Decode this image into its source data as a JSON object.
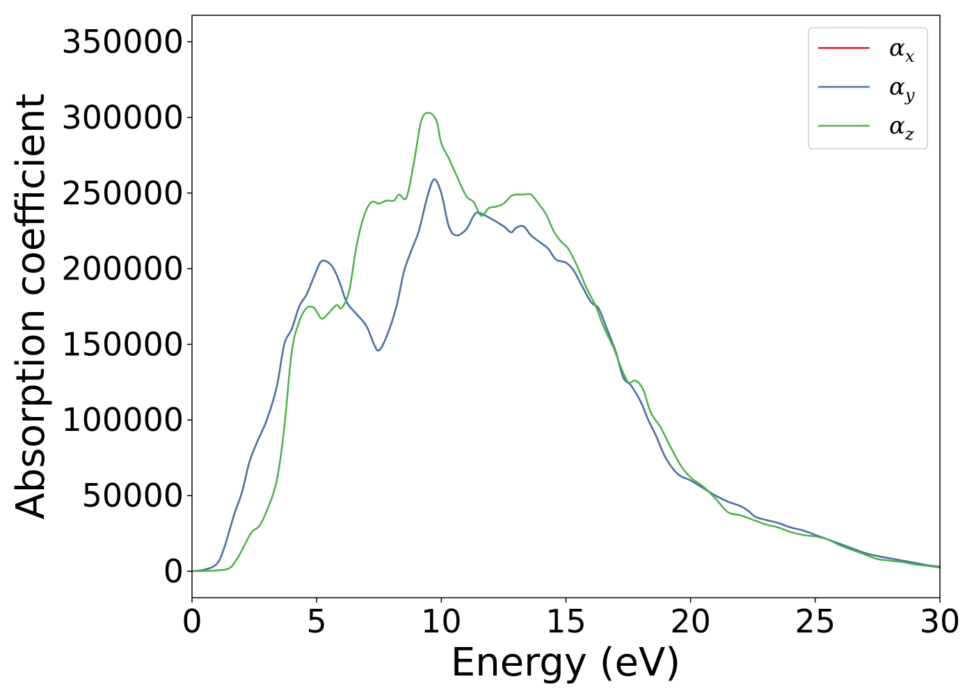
{
  "chart_data": {
    "type": "line",
    "title": "",
    "xlabel": "Energy (eV)",
    "ylabel": "Absorption coefficient",
    "xlim": [
      0,
      30
    ],
    "ylim": [
      -17500,
      367500
    ],
    "xticks": [
      0,
      5,
      10,
      15,
      20,
      25,
      30
    ],
    "yticks": [
      0,
      50000,
      100000,
      150000,
      200000,
      250000,
      300000,
      350000
    ],
    "grid": false,
    "legend_position": "top-right",
    "series": [
      {
        "name": "α_x",
        "legend_base": "α",
        "legend_sub": "x",
        "color": "#e41a1c",
        "x": [
          0,
          0.5,
          1.0,
          1.3,
          1.7,
          2.0,
          2.3,
          2.6,
          3.0,
          3.4,
          3.7,
          4.0,
          4.3,
          4.6,
          4.9,
          5.2,
          5.6,
          5.9,
          6.2,
          6.6,
          7.0,
          7.3,
          7.5,
          7.8,
          8.2,
          8.5,
          8.8,
          9.1,
          9.4,
          9.7,
          10.0,
          10.3,
          10.6,
          11.0,
          11.3,
          11.5,
          12.0,
          12.5,
          12.8,
          13.0,
          13.3,
          13.6,
          14.0,
          14.3,
          14.6,
          15.0,
          15.3,
          15.6,
          16.0,
          16.3,
          16.6,
          17.0,
          17.3,
          17.6,
          18.0,
          18.3,
          18.6,
          19.0,
          19.5,
          20.0,
          20.5,
          21.0,
          21.5,
          22.0,
          22.3,
          22.6,
          23.0,
          23.5,
          24.0,
          24.5,
          25.0,
          25.5,
          26.0,
          26.5,
          27.0,
          27.5,
          28.0,
          28.5,
          29.0,
          29.5,
          30.0
        ],
        "y": [
          0,
          1000,
          5000,
          16000,
          38000,
          52000,
          72000,
          85000,
          100000,
          122000,
          150000,
          160000,
          175000,
          183000,
          195000,
          205000,
          202000,
          192000,
          178000,
          170000,
          162000,
          150000,
          146000,
          155000,
          175000,
          198000,
          212000,
          225000,
          245000,
          259000,
          250000,
          228000,
          222000,
          226000,
          235000,
          237000,
          233000,
          228000,
          224000,
          227000,
          228000,
          222000,
          217000,
          213000,
          206000,
          204000,
          199000,
          190000,
          178000,
          174000,
          162000,
          145000,
          128000,
          123000,
          112000,
          100000,
          90000,
          75000,
          64000,
          60000,
          55000,
          50000,
          46000,
          43000,
          40000,
          36000,
          34000,
          32000,
          29000,
          27000,
          24000,
          21000,
          18000,
          15000,
          12000,
          10000,
          8500,
          7000,
          5500,
          4000,
          3000
        ]
      },
      {
        "name": "α_y",
        "legend_base": "α",
        "legend_sub": "y",
        "color": "#4477aa",
        "x": [
          0,
          0.5,
          1.0,
          1.3,
          1.7,
          2.0,
          2.3,
          2.6,
          3.0,
          3.4,
          3.7,
          4.0,
          4.3,
          4.6,
          4.9,
          5.2,
          5.6,
          5.9,
          6.2,
          6.6,
          7.0,
          7.3,
          7.5,
          7.8,
          8.2,
          8.5,
          8.8,
          9.1,
          9.4,
          9.7,
          10.0,
          10.3,
          10.6,
          11.0,
          11.3,
          11.5,
          12.0,
          12.5,
          12.8,
          13.0,
          13.3,
          13.6,
          14.0,
          14.3,
          14.6,
          15.0,
          15.3,
          15.6,
          16.0,
          16.3,
          16.6,
          17.0,
          17.3,
          17.6,
          18.0,
          18.3,
          18.6,
          19.0,
          19.5,
          20.0,
          20.5,
          21.0,
          21.5,
          22.0,
          22.3,
          22.6,
          23.0,
          23.5,
          24.0,
          24.5,
          25.0,
          25.5,
          26.0,
          26.5,
          27.0,
          27.5,
          28.0,
          28.5,
          29.0,
          29.5,
          30.0
        ],
        "y": [
          0,
          1000,
          5000,
          16000,
          38000,
          52000,
          72000,
          85000,
          100000,
          122000,
          150000,
          160000,
          175000,
          183000,
          195000,
          205000,
          202000,
          192000,
          178000,
          170000,
          162000,
          150000,
          146000,
          155000,
          175000,
          198000,
          212000,
          225000,
          245000,
          259000,
          250000,
          228000,
          222000,
          226000,
          235000,
          237000,
          233000,
          228000,
          224000,
          227000,
          228000,
          222000,
          217000,
          213000,
          206000,
          204000,
          199000,
          190000,
          178000,
          174000,
          162000,
          145000,
          128000,
          123000,
          112000,
          100000,
          90000,
          75000,
          64000,
          60000,
          55000,
          50000,
          46000,
          43000,
          40000,
          36000,
          34000,
          32000,
          29000,
          27000,
          24000,
          21000,
          18000,
          15000,
          12000,
          10000,
          8500,
          7000,
          5500,
          4000,
          3000
        ]
      },
      {
        "name": "α_z",
        "legend_base": "α",
        "legend_sub": "z",
        "color": "#4daf4a",
        "x": [
          0,
          0.5,
          1.0,
          1.5,
          1.8,
          2.1,
          2.4,
          2.7,
          3.0,
          3.4,
          3.7,
          4.0,
          4.3,
          4.6,
          4.9,
          5.2,
          5.5,
          5.8,
          6.0,
          6.3,
          6.6,
          6.9,
          7.2,
          7.5,
          7.8,
          8.1,
          8.3,
          8.6,
          8.9,
          9.2,
          9.5,
          9.8,
          10.0,
          10.3,
          10.6,
          11.0,
          11.3,
          11.6,
          11.9,
          12.2,
          12.5,
          12.8,
          13.0,
          13.3,
          13.6,
          13.9,
          14.2,
          14.5,
          14.8,
          15.1,
          15.5,
          15.8,
          16.2,
          16.5,
          16.9,
          17.2,
          17.5,
          17.8,
          18.1,
          18.4,
          18.8,
          19.2,
          19.6,
          20.0,
          20.5,
          21.0,
          21.5,
          22.0,
          22.5,
          23.0,
          23.5,
          24.0,
          24.5,
          25.0,
          25.5,
          26.0,
          26.5,
          27.0,
          27.5,
          28.0,
          28.5,
          29.0,
          29.5,
          30.0
        ],
        "y": [
          0,
          200,
          500,
          2000,
          8000,
          17000,
          26000,
          30000,
          40000,
          60000,
          95000,
          145000,
          165000,
          174000,
          174000,
          167000,
          171000,
          176000,
          174000,
          185000,
          215000,
          235000,
          244000,
          243000,
          245000,
          245000,
          249000,
          247000,
          270000,
          298000,
          303000,
          298000,
          283000,
          273000,
          262000,
          248000,
          244000,
          235000,
          240000,
          241000,
          243000,
          248000,
          249000,
          249000,
          249000,
          243000,
          236000,
          225000,
          218000,
          213000,
          200000,
          188000,
          175000,
          162000,
          148000,
          135000,
          125000,
          126000,
          120000,
          105000,
          95000,
          82000,
          70000,
          62000,
          56000,
          48000,
          39000,
          37000,
          34000,
          31000,
          29000,
          26000,
          24000,
          23000,
          21000,
          17000,
          14000,
          11000,
          8000,
          7000,
          6000,
          4500,
          3500,
          2500
        ]
      }
    ]
  }
}
